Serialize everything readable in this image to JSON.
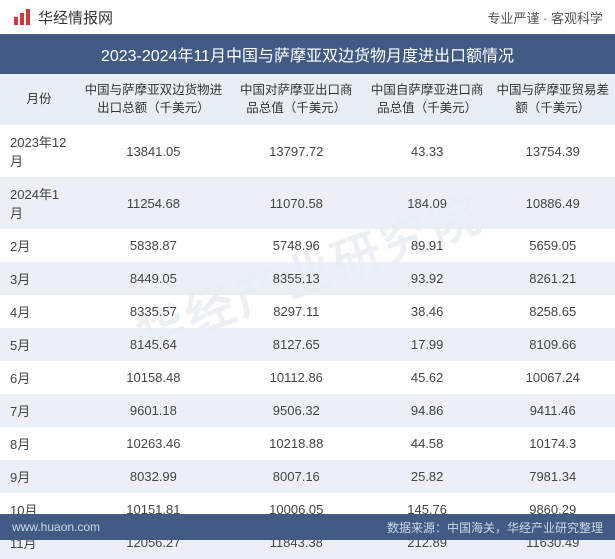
{
  "brand": {
    "icon_label": "bar-chart-icon",
    "text": "华经情报网",
    "tagline": "专业严谨 · 客观科学"
  },
  "title": "2023-2024年11月中国与萨摩亚双边货物月度进出口额情况",
  "watermark": "华经产业研究院",
  "table": {
    "columns": [
      "月份",
      "中国与萨摩亚双边货物进出口总额（千美元）",
      "中国对萨摩亚出口商品总值（千美元）",
      "中国自萨摩亚进口商品总值（千美元）",
      "中国与萨摩亚贸易差额（千美元）"
    ],
    "rows": [
      [
        "2023年12月",
        "13841.05",
        "13797.72",
        "43.33",
        "13754.39"
      ],
      [
        "2024年1月",
        "11254.68",
        "11070.58",
        "184.09",
        "10886.49"
      ],
      [
        "2月",
        "5838.87",
        "5748.96",
        "89.91",
        "5659.05"
      ],
      [
        "3月",
        "8449.05",
        "8355.13",
        "93.92",
        "8261.21"
      ],
      [
        "4月",
        "8335.57",
        "8297.11",
        "38.46",
        "8258.65"
      ],
      [
        "5月",
        "8145.64",
        "8127.65",
        "17.99",
        "8109.66"
      ],
      [
        "6月",
        "10158.48",
        "10112.86",
        "45.62",
        "10067.24"
      ],
      [
        "7月",
        "9601.18",
        "9506.32",
        "94.86",
        "9411.46"
      ],
      [
        "8月",
        "10263.46",
        "10218.88",
        "44.58",
        "10174.3"
      ],
      [
        "9月",
        "8032.99",
        "8007.16",
        "25.82",
        "7981.34"
      ],
      [
        "10月",
        "10151.81",
        "10006.05",
        "145.76",
        "9860.29"
      ],
      [
        "11月",
        "12056.27",
        "11843.38",
        "212.89",
        "11630.49"
      ]
    ]
  },
  "footer": {
    "url": "www.huaon.com",
    "source": "数据来源：中国海关，华经产业研究整理"
  },
  "colors": {
    "header_bg": "#425b84",
    "row_alt_bg": "#e9edf4",
    "text": "#444444",
    "brand_icon": "#d23a3a"
  }
}
